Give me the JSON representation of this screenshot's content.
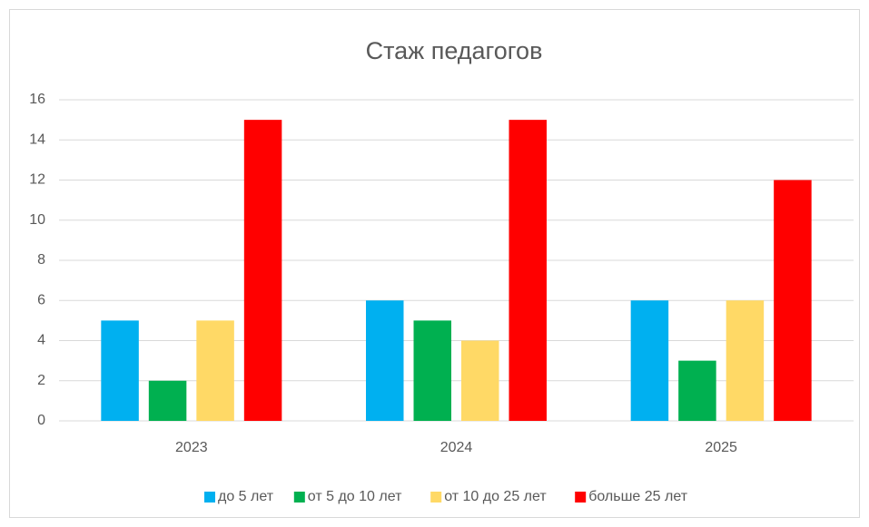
{
  "chart_data": {
    "type": "bar",
    "title": "Стаж педагогов",
    "categories": [
      "2023",
      "2024",
      "2025"
    ],
    "series": [
      {
        "name": "до 5 лет",
        "color": "#00b0f0",
        "values": [
          5,
          6,
          6
        ]
      },
      {
        "name": "от 5 до 10 лет",
        "color": "#00b050",
        "values": [
          2,
          5,
          3
        ]
      },
      {
        "name": "от 10 до 25 лет",
        "color": "#ffd966",
        "values": [
          5,
          4,
          6
        ]
      },
      {
        "name": "больше 25 лет",
        "color": "#ff0000",
        "values": [
          15,
          15,
          12
        ]
      }
    ],
    "ylim": [
      0,
      16
    ],
    "yticks": [
      0,
      2,
      4,
      6,
      8,
      10,
      12,
      14,
      16
    ],
    "grid": true,
    "legend": "bottom"
  }
}
